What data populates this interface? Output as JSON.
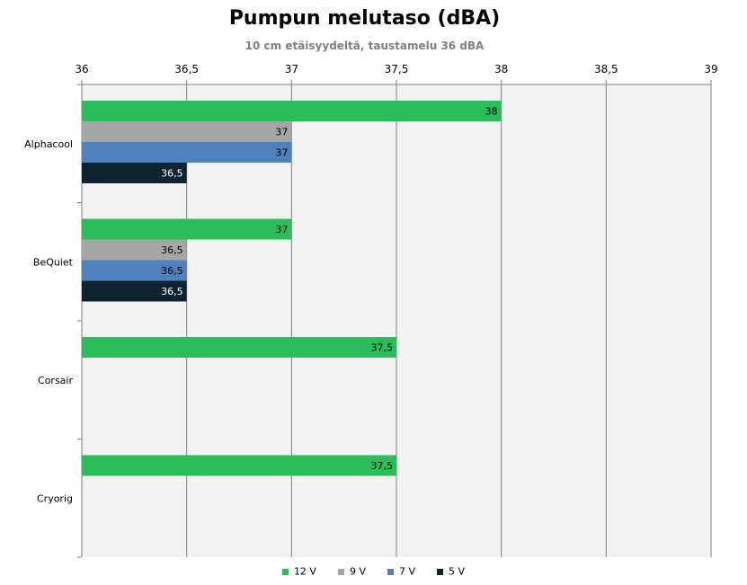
{
  "chart_data": {
    "type": "bar",
    "orientation": "horizontal",
    "title": "Pumpun melutaso (dBA)",
    "subtitle": "10 cm etäisyydeltä, taustamelu 36 dBA",
    "categories": [
      "Alphacool",
      "BeQuiet",
      "Corsair",
      "Cryorig"
    ],
    "series": [
      {
        "name": "12 V",
        "color": "#2bbd5b",
        "values": [
          38,
          37,
          37.5,
          37.5
        ],
        "labels": [
          "38",
          "37",
          "37,5",
          "37,5"
        ]
      },
      {
        "name": "9 V",
        "color": "#a6a6a6",
        "values": [
          37,
          36.5,
          null,
          null
        ],
        "labels": [
          "37",
          "36,5",
          "",
          ""
        ]
      },
      {
        "name": "7 V",
        "color": "#4f81bd",
        "values": [
          37,
          36.5,
          null,
          null
        ],
        "labels": [
          "37",
          "36,5",
          "",
          ""
        ]
      },
      {
        "name": "5 V",
        "color": "#0f2430",
        "values": [
          36.5,
          36.5,
          null,
          null
        ],
        "labels": [
          "36,5",
          "36,5",
          "",
          ""
        ]
      }
    ],
    "xlim": [
      36,
      39
    ],
    "x_ticks": [
      36,
      36.5,
      37,
      37.5,
      38,
      38.5,
      39
    ],
    "x_tick_labels": [
      "36",
      "36,5",
      "37",
      "37,5",
      "38",
      "38,5",
      "39"
    ],
    "x_axis_position": "top",
    "grid": true,
    "legend_position": "bottom"
  }
}
